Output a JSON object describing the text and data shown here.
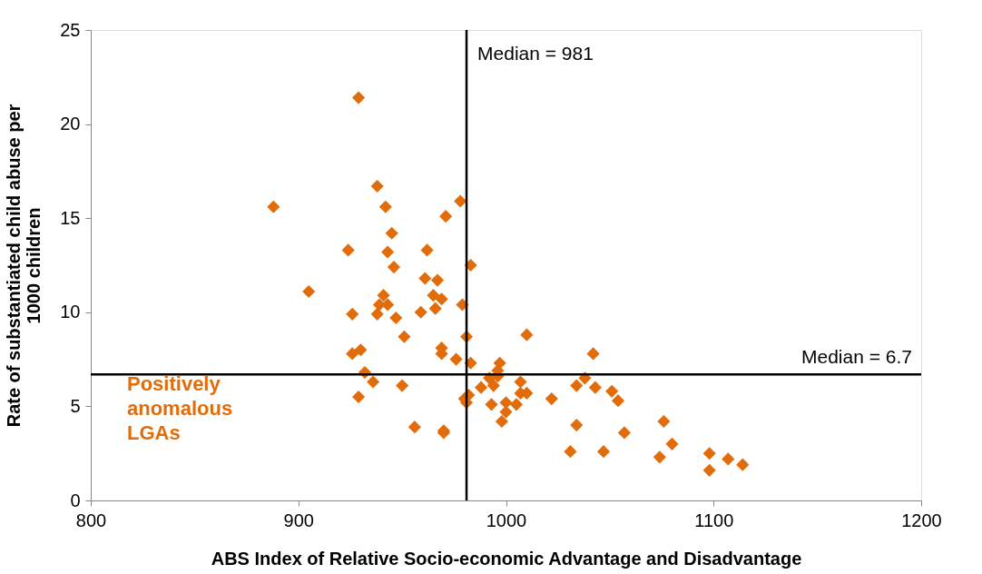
{
  "chart_data": {
    "type": "scatter",
    "xlabel": "ABS Index of Relative Socio-economic Advantage and Disadvantage",
    "ylabel": "Rate of substantiated child abuse per 1000 children",
    "x": [
      888,
      905,
      929,
      924,
      926,
      926,
      930,
      929,
      932,
      936,
      938,
      942,
      945,
      943,
      946,
      941,
      939,
      943,
      938,
      947,
      951,
      950,
      956,
      962,
      961,
      959,
      965,
      967,
      966,
      969,
      969,
      969,
      971,
      978,
      976,
      979,
      970,
      970,
      983,
      981,
      983,
      980,
      982,
      981,
      988,
      992,
      994,
      993,
      996,
      997,
      996,
      998,
      1000,
      1000,
      1005,
      1007,
      1007,
      1010,
      1010,
      1022,
      1031,
      1034,
      1034,
      1038,
      1042,
      1043,
      1047,
      1051,
      1054,
      1057,
      1074,
      1076,
      1080,
      1098,
      1098,
      1107,
      1114
    ],
    "series": [
      {
        "color": "#e36c0a",
        "values": [
          15.6,
          11.1,
          21.4,
          13.3,
          9.9,
          7.8,
          8.0,
          5.5,
          6.8,
          6.3,
          16.7,
          15.6,
          14.2,
          13.2,
          12.4,
          10.9,
          10.4,
          10.4,
          9.9,
          9.7,
          8.7,
          6.1,
          3.9,
          13.3,
          11.8,
          10.0,
          10.9,
          11.7,
          10.2,
          10.7,
          8.1,
          7.8,
          15.1,
          15.9,
          7.5,
          10.4,
          3.7,
          3.6,
          12.5,
          8.7,
          7.3,
          5.4,
          5.6,
          5.2,
          6.0,
          6.5,
          6.1,
          5.1,
          6.9,
          7.3,
          6.6,
          4.2,
          4.7,
          5.2,
          5.1,
          6.3,
          5.7,
          5.7,
          8.8,
          5.4,
          2.6,
          4.0,
          6.1,
          6.5,
          7.8,
          6.0,
          2.6,
          5.8,
          5.3,
          3.6,
          2.3,
          4.2,
          3.0,
          2.5,
          1.6,
          2.2,
          1.9
        ]
      }
    ],
    "xlim": [
      800,
      1200
    ],
    "xticks": [
      800,
      900,
      1000,
      1100,
      1200
    ],
    "ylim": [
      0,
      25
    ],
    "yticks": [
      0,
      5,
      10,
      15,
      20,
      25
    ],
    "marker": "diamond",
    "grid": false,
    "ref_lines": [
      {
        "axis": "x",
        "value": 981,
        "label": "Median = 981",
        "color": "#000000"
      },
      {
        "axis": "y",
        "value": 6.7,
        "label": "Median = 6.7",
        "color": "#000000"
      }
    ],
    "annotations": [
      "Positively anomalous LGAs"
    ]
  }
}
